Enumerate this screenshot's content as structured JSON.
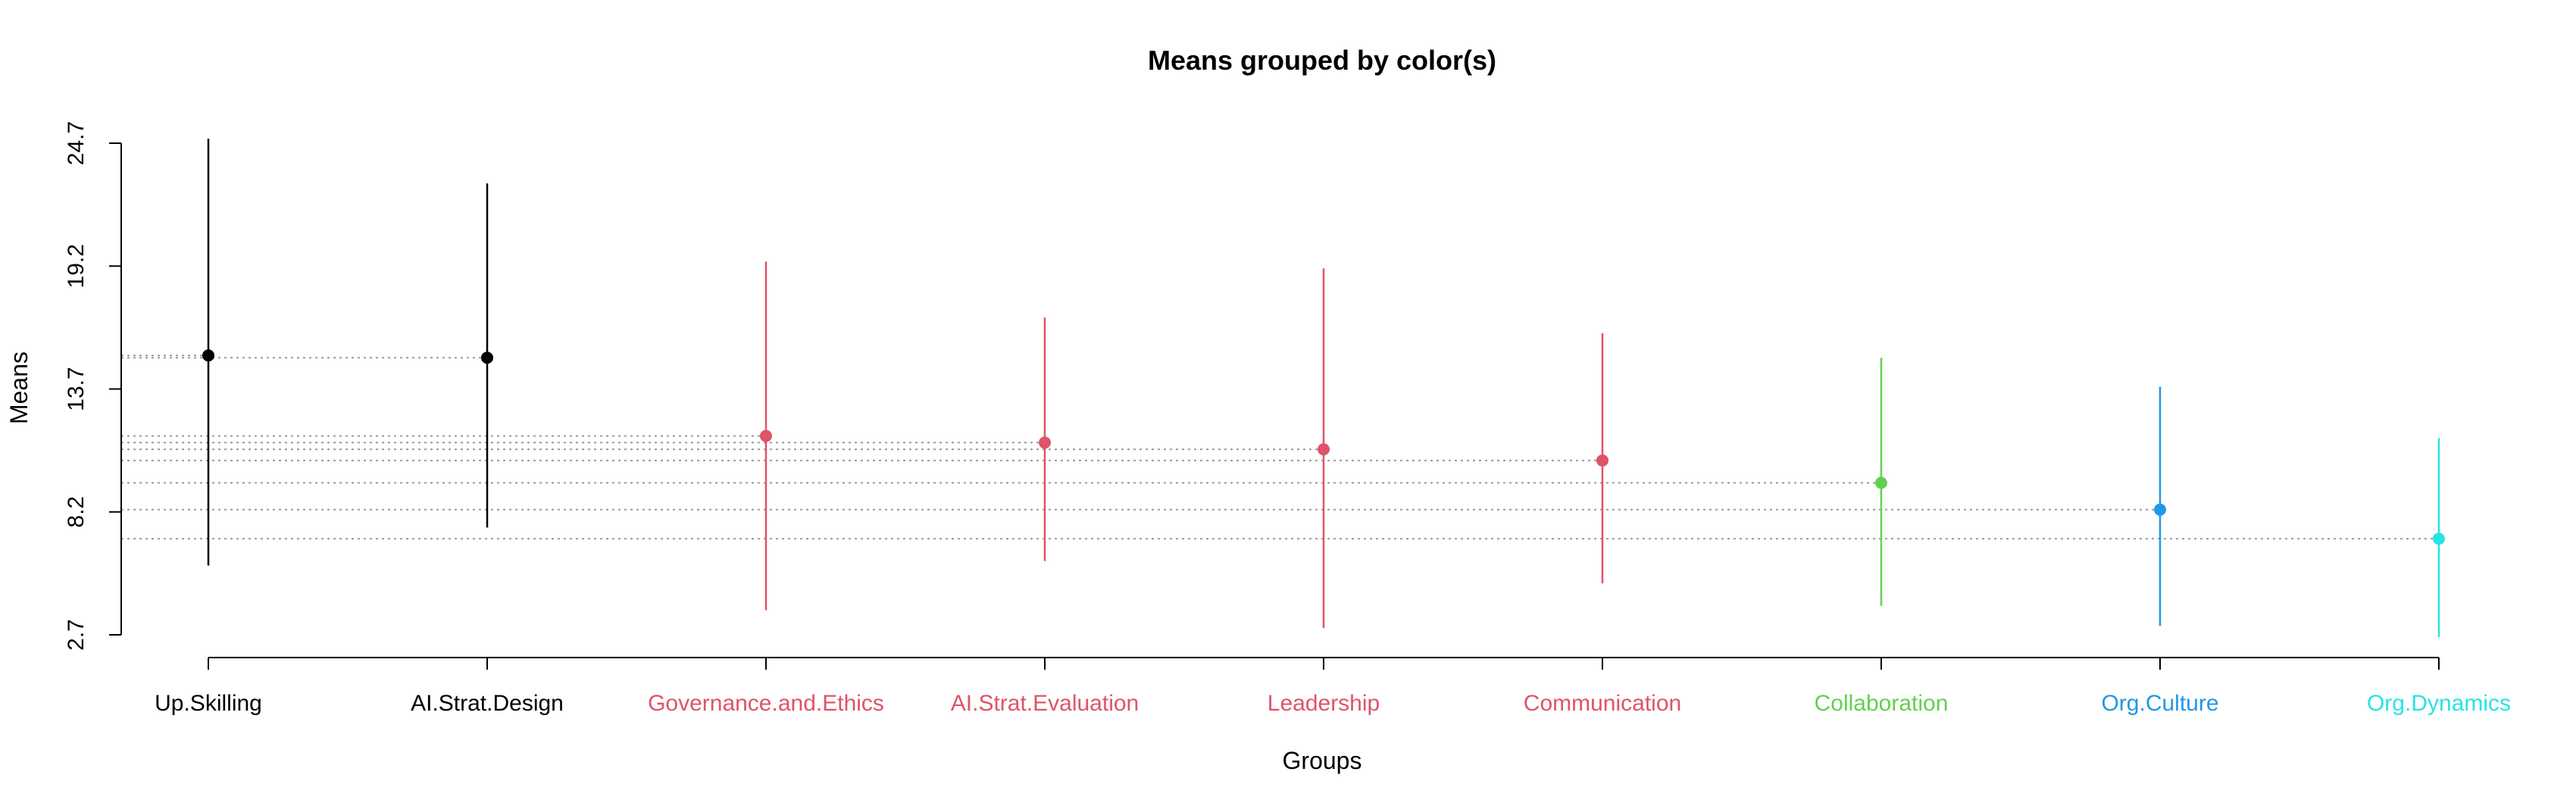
{
  "chart_data": {
    "type": "scatter",
    "title": "Means grouped by color(s)",
    "xlabel": "Groups",
    "ylabel": "Means",
    "ylim": [
      2.7,
      24.7
    ],
    "yticks": [
      "2.7",
      "8.2",
      "13.7",
      "19.2",
      "24.7"
    ],
    "grid": "dotted reference lines from each mean to the y axis",
    "legend": "none",
    "categories": [
      "Up.Skilling",
      "AI.Strat.Design",
      "Governance.and.Ethics",
      "AI.Strat.Evaluation",
      "Leadership",
      "Communication",
      "Collaboration",
      "Org.Culture",
      "Org.Dynamics"
    ],
    "colors": [
      "#000000",
      "#000000",
      "#DF536B",
      "#DF536B",
      "#DF536B",
      "#DF536B",
      "#61D04F",
      "#2297E6",
      "#28E2E5"
    ],
    "series": [
      {
        "means": [
          15.2,
          15.1,
          11.6,
          11.3,
          11.0,
          10.5,
          9.5,
          8.3,
          7.0
        ],
        "lower": [
          5.8,
          7.5,
          3.8,
          6.0,
          3.0,
          5.0,
          4.0,
          3.1,
          2.6
        ],
        "upper": [
          24.9,
          22.9,
          19.4,
          16.9,
          19.1,
          16.2,
          15.1,
          13.8,
          11.5
        ]
      }
    ]
  }
}
